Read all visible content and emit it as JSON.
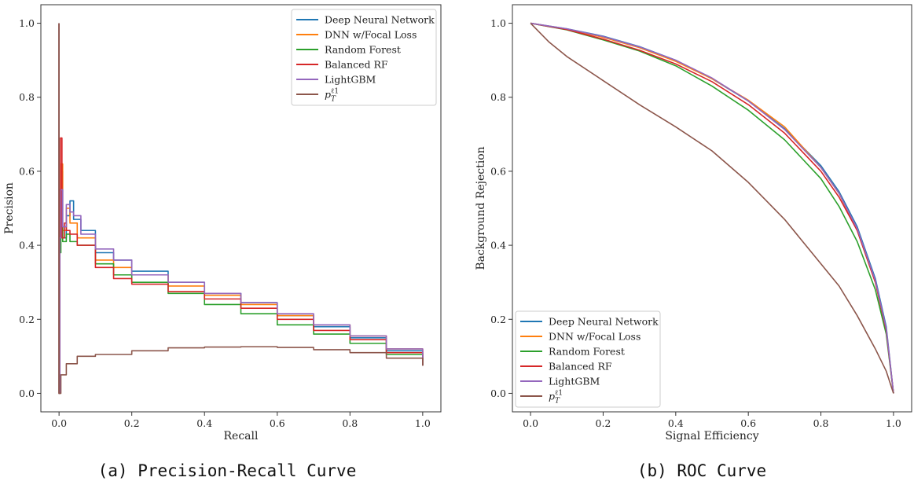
{
  "chart_data": [
    {
      "type": "line",
      "caption": "(a) Precision-Recall Curve",
      "xlabel": "Recall",
      "ylabel": "Precision",
      "xlim": [
        -0.05,
        1.05
      ],
      "ylim": [
        -0.05,
        1.05
      ],
      "xticks": [
        "0.0",
        "0.2",
        "0.4",
        "0.6",
        "0.8",
        "1.0"
      ],
      "yticks": [
        "0.0",
        "0.2",
        "0.4",
        "0.6",
        "0.8",
        "1.0"
      ],
      "grid": false,
      "legend_position": "top-right",
      "series": [
        {
          "name": "Deep Neural Network",
          "color": "#1f77b4",
          "points": [
            [
              0,
              1.0
            ],
            [
              0.0,
              0.0
            ],
            [
              0.002,
              0.45
            ],
            [
              0.005,
              0.6
            ],
            [
              0.01,
              0.42
            ],
            [
              0.02,
              0.48
            ],
            [
              0.03,
              0.52
            ],
            [
              0.04,
              0.47
            ],
            [
              0.06,
              0.44
            ],
            [
              0.1,
              0.38
            ],
            [
              0.15,
              0.36
            ],
            [
              0.2,
              0.33
            ],
            [
              0.3,
              0.3
            ],
            [
              0.4,
              0.27
            ],
            [
              0.5,
              0.245
            ],
            [
              0.6,
              0.21
            ],
            [
              0.7,
              0.18
            ],
            [
              0.8,
              0.15
            ],
            [
              0.9,
              0.115
            ],
            [
              1.0,
              0.075
            ]
          ]
        },
        {
          "name": "DNN w/Focal Loss",
          "color": "#ff7f0e",
          "points": [
            [
              0,
              1.0
            ],
            [
              0.0,
              0.0
            ],
            [
              0.002,
              0.5
            ],
            [
              0.005,
              0.62
            ],
            [
              0.01,
              0.44
            ],
            [
              0.02,
              0.5
            ],
            [
              0.03,
              0.46
            ],
            [
              0.05,
              0.42
            ],
            [
              0.1,
              0.36
            ],
            [
              0.15,
              0.34
            ],
            [
              0.2,
              0.32
            ],
            [
              0.3,
              0.29
            ],
            [
              0.4,
              0.265
            ],
            [
              0.5,
              0.24
            ],
            [
              0.6,
              0.21
            ],
            [
              0.7,
              0.185
            ],
            [
              0.8,
              0.155
            ],
            [
              0.9,
              0.12
            ],
            [
              1.0,
              0.075
            ]
          ]
        },
        {
          "name": "Random Forest",
          "color": "#2ca02c",
          "points": [
            [
              0,
              1.0
            ],
            [
              0.0,
              0.0
            ],
            [
              0.002,
              0.38
            ],
            [
              0.005,
              0.45
            ],
            [
              0.01,
              0.41
            ],
            [
              0.02,
              0.43
            ],
            [
              0.03,
              0.41
            ],
            [
              0.05,
              0.4
            ],
            [
              0.1,
              0.35
            ],
            [
              0.15,
              0.32
            ],
            [
              0.2,
              0.3
            ],
            [
              0.3,
              0.27
            ],
            [
              0.4,
              0.24
            ],
            [
              0.5,
              0.215
            ],
            [
              0.6,
              0.185
            ],
            [
              0.7,
              0.16
            ],
            [
              0.8,
              0.135
            ],
            [
              0.9,
              0.105
            ],
            [
              1.0,
              0.075
            ]
          ]
        },
        {
          "name": "Balanced RF",
          "color": "#d62728",
          "points": [
            [
              0,
              1.0
            ],
            [
              0.0,
              0.0
            ],
            [
              0.002,
              0.55
            ],
            [
              0.004,
              0.69
            ],
            [
              0.008,
              0.42
            ],
            [
              0.015,
              0.46
            ],
            [
              0.02,
              0.44
            ],
            [
              0.03,
              0.43
            ],
            [
              0.05,
              0.4
            ],
            [
              0.1,
              0.34
            ],
            [
              0.15,
              0.31
            ],
            [
              0.2,
              0.295
            ],
            [
              0.3,
              0.275
            ],
            [
              0.4,
              0.255
            ],
            [
              0.5,
              0.23
            ],
            [
              0.6,
              0.2
            ],
            [
              0.7,
              0.17
            ],
            [
              0.8,
              0.145
            ],
            [
              0.9,
              0.11
            ],
            [
              1.0,
              0.075
            ]
          ]
        },
        {
          "name": "LightGBM",
          "color": "#9467bd",
          "points": [
            [
              0,
              1.0
            ],
            [
              0.0,
              0.0
            ],
            [
              0.002,
              0.42
            ],
            [
              0.005,
              0.55
            ],
            [
              0.01,
              0.45
            ],
            [
              0.02,
              0.51
            ],
            [
              0.03,
              0.49
            ],
            [
              0.04,
              0.48
            ],
            [
              0.06,
              0.43
            ],
            [
              0.1,
              0.39
            ],
            [
              0.15,
              0.36
            ],
            [
              0.2,
              0.32
            ],
            [
              0.3,
              0.3
            ],
            [
              0.4,
              0.27
            ],
            [
              0.5,
              0.245
            ],
            [
              0.6,
              0.215
            ],
            [
              0.7,
              0.185
            ],
            [
              0.8,
              0.155
            ],
            [
              0.9,
              0.12
            ],
            [
              1.0,
              0.075
            ]
          ]
        },
        {
          "name": "p_T^{ℓ1}",
          "color": "#8c564b",
          "points": [
            [
              0,
              1.0
            ],
            [
              0.0,
              0.0
            ],
            [
              0.005,
              0.05
            ],
            [
              0.02,
              0.08
            ],
            [
              0.05,
              0.1
            ],
            [
              0.1,
              0.105
            ],
            [
              0.2,
              0.115
            ],
            [
              0.3,
              0.123
            ],
            [
              0.4,
              0.125
            ],
            [
              0.5,
              0.126
            ],
            [
              0.6,
              0.124
            ],
            [
              0.7,
              0.118
            ],
            [
              0.8,
              0.11
            ],
            [
              0.9,
              0.095
            ],
            [
              1.0,
              0.075
            ]
          ]
        }
      ]
    },
    {
      "type": "line",
      "caption": "(b) ROC Curve",
      "xlabel": "Signal Efficiency",
      "ylabel": "Background Rejection",
      "xlim": [
        -0.05,
        1.05
      ],
      "ylim": [
        -0.05,
        1.05
      ],
      "xticks": [
        "0.0",
        "0.2",
        "0.4",
        "0.6",
        "0.8",
        "1.0"
      ],
      "yticks": [
        "0.0",
        "0.2",
        "0.4",
        "0.6",
        "0.8",
        "1.0"
      ],
      "grid": false,
      "legend_position": "bottom-left",
      "series": [
        {
          "name": "Deep Neural Network",
          "color": "#1f77b4",
          "points": [
            [
              0,
              1.0
            ],
            [
              0.1,
              0.985
            ],
            [
              0.2,
              0.965
            ],
            [
              0.3,
              0.937
            ],
            [
              0.4,
              0.9
            ],
            [
              0.5,
              0.85
            ],
            [
              0.6,
              0.79
            ],
            [
              0.7,
              0.715
            ],
            [
              0.8,
              0.615
            ],
            [
              0.85,
              0.545
            ],
            [
              0.9,
              0.45
            ],
            [
              0.95,
              0.31
            ],
            [
              0.98,
              0.18
            ],
            [
              1.0,
              0.0
            ]
          ]
        },
        {
          "name": "DNN w/Focal Loss",
          "color": "#ff7f0e",
          "points": [
            [
              0,
              1.0
            ],
            [
              0.1,
              0.984
            ],
            [
              0.2,
              0.962
            ],
            [
              0.3,
              0.934
            ],
            [
              0.4,
              0.897
            ],
            [
              0.5,
              0.85
            ],
            [
              0.6,
              0.792
            ],
            [
              0.7,
              0.72
            ],
            [
              0.8,
              0.61
            ],
            [
              0.85,
              0.54
            ],
            [
              0.9,
              0.44
            ],
            [
              0.95,
              0.3
            ],
            [
              0.98,
              0.17
            ],
            [
              1.0,
              0.0
            ]
          ]
        },
        {
          "name": "Random Forest",
          "color": "#2ca02c",
          "points": [
            [
              0,
              1.0
            ],
            [
              0.1,
              0.982
            ],
            [
              0.2,
              0.955
            ],
            [
              0.3,
              0.925
            ],
            [
              0.4,
              0.885
            ],
            [
              0.5,
              0.83
            ],
            [
              0.6,
              0.765
            ],
            [
              0.7,
              0.685
            ],
            [
              0.8,
              0.58
            ],
            [
              0.85,
              0.505
            ],
            [
              0.9,
              0.41
            ],
            [
              0.95,
              0.28
            ],
            [
              0.98,
              0.16
            ],
            [
              1.0,
              0.0
            ]
          ]
        },
        {
          "name": "Balanced RF",
          "color": "#d62728",
          "points": [
            [
              0,
              1.0
            ],
            [
              0.1,
              0.983
            ],
            [
              0.2,
              0.957
            ],
            [
              0.3,
              0.927
            ],
            [
              0.4,
              0.89
            ],
            [
              0.5,
              0.842
            ],
            [
              0.6,
              0.78
            ],
            [
              0.7,
              0.703
            ],
            [
              0.8,
              0.6
            ],
            [
              0.85,
              0.53
            ],
            [
              0.9,
              0.44
            ],
            [
              0.95,
              0.3
            ],
            [
              0.98,
              0.17
            ],
            [
              1.0,
              0.0
            ]
          ]
        },
        {
          "name": "LightGBM",
          "color": "#9467bd",
          "points": [
            [
              0,
              1.0
            ],
            [
              0.1,
              0.985
            ],
            [
              0.2,
              0.964
            ],
            [
              0.3,
              0.936
            ],
            [
              0.4,
              0.9
            ],
            [
              0.5,
              0.852
            ],
            [
              0.6,
              0.79
            ],
            [
              0.7,
              0.713
            ],
            [
              0.8,
              0.61
            ],
            [
              0.85,
              0.54
            ],
            [
              0.9,
              0.445
            ],
            [
              0.95,
              0.305
            ],
            [
              0.98,
              0.175
            ],
            [
              1.0,
              0.0
            ]
          ]
        },
        {
          "name": "p_T^{ℓ1}",
          "color": "#8c564b",
          "points": [
            [
              0,
              1.0
            ],
            [
              0.05,
              0.95
            ],
            [
              0.1,
              0.91
            ],
            [
              0.2,
              0.845
            ],
            [
              0.3,
              0.78
            ],
            [
              0.4,
              0.72
            ],
            [
              0.5,
              0.655
            ],
            [
              0.6,
              0.57
            ],
            [
              0.7,
              0.47
            ],
            [
              0.8,
              0.35
            ],
            [
              0.85,
              0.29
            ],
            [
              0.9,
              0.21
            ],
            [
              0.95,
              0.12
            ],
            [
              0.98,
              0.06
            ],
            [
              1.0,
              0.0
            ]
          ]
        }
      ]
    }
  ]
}
